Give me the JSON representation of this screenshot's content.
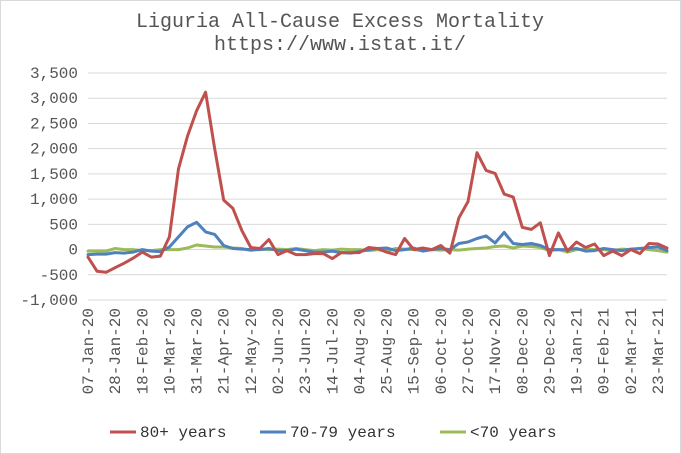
{
  "chart_data": {
    "type": "line",
    "title": "Liguria All-Cause Excess Mortality",
    "subtitle": "https://www.istat.it/",
    "xlabel": "",
    "ylabel": "",
    "ylim": [
      -1000,
      3500
    ],
    "yticks": [
      -1000,
      -500,
      0,
      500,
      1000,
      1500,
      2000,
      2500,
      3000,
      3500
    ],
    "ytick_labels": [
      "-1,000",
      "-500",
      "0",
      "500",
      "1,000",
      "1,500",
      "2,000",
      "2,500",
      "3,000",
      "3,500"
    ],
    "xtick_labels": [
      "07-Jan-20",
      "28-Jan-20",
      "18-Feb-20",
      "10-Mar-20",
      "31-Mar-20",
      "21-Apr-20",
      "12-May-20",
      "02-Jun-20",
      "23-Jun-20",
      "14-Jul-20",
      "04-Aug-20",
      "25-Aug-20",
      "15-Sep-20",
      "06-Oct-20",
      "27-Oct-20",
      "17-Nov-20",
      "08-Dec-20",
      "29-Dec-20",
      "19-Jan-21",
      "09-Feb-21",
      "02-Mar-21",
      "23-Mar-21"
    ],
    "xtick_step": 3,
    "grid": true,
    "legend_position": "bottom",
    "series": [
      {
        "name": "80+ years",
        "color": "#c0504d",
        "values": [
          -150,
          -430,
          -450,
          -360,
          -270,
          -170,
          -50,
          -150,
          -130,
          250,
          1600,
          2250,
          2750,
          3120,
          2000,
          980,
          820,
          380,
          40,
          20,
          200,
          -100,
          -20,
          -100,
          -100,
          -80,
          -80,
          -180,
          -60,
          -60,
          -60,
          40,
          20,
          -50,
          -100,
          220,
          0,
          30,
          0,
          80,
          -70,
          630,
          950,
          1920,
          1570,
          1510,
          1100,
          1040,
          440,
          400,
          530,
          -120,
          330,
          -30,
          150,
          40,
          110,
          -120,
          -30,
          -120,
          0,
          -80,
          120,
          110,
          30
        ]
      },
      {
        "name": "70-79 years",
        "color": "#4f81bd",
        "values": [
          -100,
          -90,
          -90,
          -60,
          -70,
          -50,
          0,
          -30,
          -40,
          50,
          250,
          450,
          540,
          350,
          300,
          80,
          20,
          10,
          0,
          0,
          20,
          -20,
          -20,
          10,
          -20,
          -50,
          -50,
          -30,
          -60,
          -70,
          -40,
          0,
          20,
          30,
          -20,
          0,
          30,
          -30,
          0,
          20,
          0,
          120,
          150,
          220,
          270,
          130,
          340,
          120,
          100,
          120,
          80,
          0,
          0,
          0,
          20,
          -30,
          -20,
          20,
          0,
          -20,
          10,
          20,
          40,
          50,
          -20
        ]
      },
      {
        "name": "<70 years",
        "color": "#9bbb59",
        "values": [
          -30,
          -30,
          -30,
          20,
          0,
          0,
          -20,
          -20,
          0,
          0,
          0,
          30,
          90,
          70,
          50,
          50,
          30,
          20,
          -20,
          10,
          0,
          10,
          0,
          20,
          0,
          -20,
          0,
          -10,
          10,
          0,
          0,
          -20,
          0,
          -30,
          20,
          10,
          0,
          -20,
          0,
          -10,
          0,
          -10,
          10,
          20,
          30,
          60,
          70,
          30,
          70,
          60,
          40,
          -20,
          0,
          -50,
          0,
          10,
          0,
          0,
          -20,
          10,
          0,
          20,
          0,
          -20,
          -50
        ]
      }
    ]
  }
}
